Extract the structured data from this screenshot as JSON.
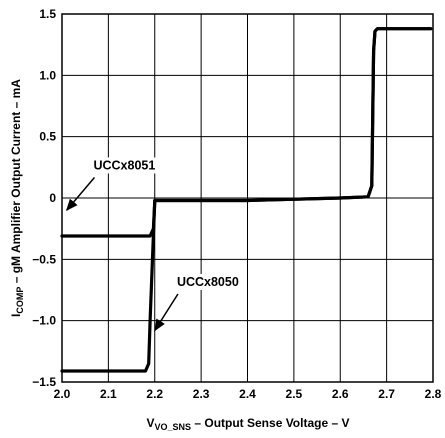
{
  "chart_data": {
    "type": "line",
    "xlabel": {
      "prefix": "V",
      "sub": "VO_SNS",
      "rest": " – Output Sense Voltage – V"
    },
    "ylabel": {
      "prefix": "I",
      "sub": "COMP",
      "rest": " – gM Amplifier Output Current – mA"
    },
    "xlim": [
      2.0,
      2.8
    ],
    "ylim": [
      -1.5,
      1.5
    ],
    "x_ticks": [
      "2.0",
      "2.1",
      "2.2",
      "2.3",
      "2.4",
      "2.5",
      "2.6",
      "2.7",
      "2.8"
    ],
    "y_ticks": [
      "−1.5",
      "−1.0",
      "−0.5",
      "0",
      "0.5",
      "1.0",
      "1.5"
    ],
    "grid": true,
    "series": [
      {
        "name": "UCCx8051",
        "points": [
          [
            2.0,
            -0.31
          ],
          [
            2.19,
            -0.31
          ],
          [
            2.197,
            -0.25
          ],
          [
            2.2,
            -0.02
          ],
          [
            2.4,
            -0.02
          ],
          [
            2.6,
            0.0
          ],
          [
            2.66,
            0.01
          ],
          [
            2.668,
            0.1
          ],
          [
            2.672,
            1.2
          ],
          [
            2.675,
            1.36
          ],
          [
            2.68,
            1.38
          ],
          [
            2.795,
            1.38
          ]
        ]
      },
      {
        "name": "UCCx8050",
        "points": [
          [
            2.0,
            -1.41
          ],
          [
            2.18,
            -1.41
          ],
          [
            2.187,
            -1.35
          ],
          [
            2.19,
            -1.0
          ],
          [
            2.197,
            -0.3
          ],
          [
            2.2,
            -0.02
          ],
          [
            2.4,
            -0.02
          ],
          [
            2.6,
            0.0
          ],
          [
            2.66,
            0.01
          ],
          [
            2.668,
            0.1
          ],
          [
            2.672,
            1.2
          ],
          [
            2.675,
            1.36
          ],
          [
            2.68,
            1.38
          ],
          [
            2.795,
            1.38
          ]
        ]
      }
    ],
    "annotations": [
      {
        "text": "UCCx8051",
        "arrow_from": [
          2.07,
          0.2
        ],
        "arrow_to": [
          2.01,
          -0.1
        ]
      },
      {
        "text": "UCCx8050",
        "arrow_from": [
          2.25,
          -0.75
        ],
        "arrow_to": [
          2.2,
          -1.08
        ]
      }
    ]
  }
}
